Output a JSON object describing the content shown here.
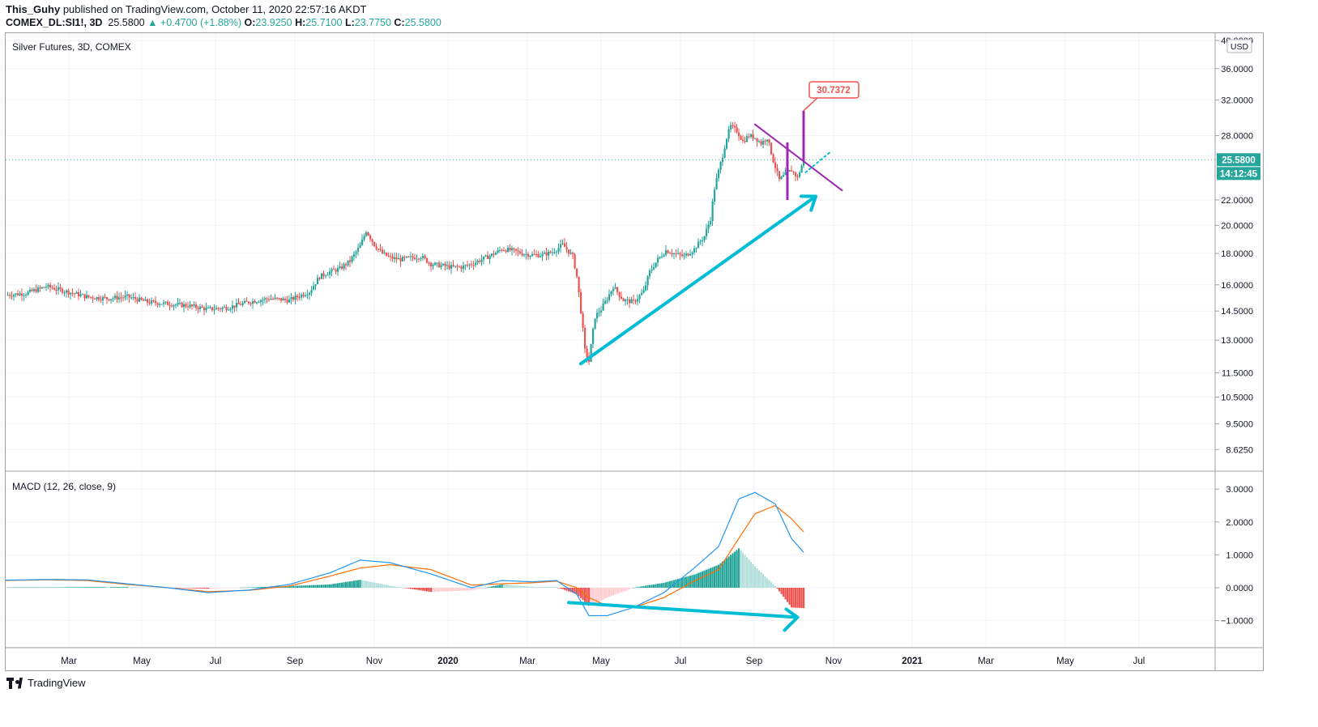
{
  "header": {
    "author": "This_Guhy",
    "published": "published on TradingView.com, October 11, 2020 22:57:16 AKDT",
    "symbol": "COMEX_DL:SI1!, 3D",
    "last": "25.5800",
    "change": "▲ +0.4700 (+1.88%)",
    "o_label": "O:",
    "o_value": "23.9250",
    "h_label": "H:",
    "h_value": "25.7100",
    "l_label": "L:",
    "l_value": "23.7750",
    "c_label": "C:",
    "c_value": "25.5800"
  },
  "footer": {
    "brand": "TradingView"
  },
  "colors": {
    "up": "#26a69a",
    "down": "#ef5350",
    "macd": "#2196f3",
    "signal": "#ff6d00",
    "arrow": "#00bcd4",
    "purple": "#9c27b0"
  },
  "chart_data": [
    {
      "type": "candlestick",
      "title": "Silver Futures, 3D, COMEX",
      "currency": "USD",
      "scale": "log",
      "ylim": [
        8.0,
        40.0
      ],
      "y_ticks": [
        40.0,
        36.0,
        32.0,
        28.0,
        22.0,
        20.0,
        18.0,
        16.0,
        14.5,
        13.0,
        11.5,
        10.5,
        9.5,
        8.625
      ],
      "y_tick_labels": [
        "40.0000",
        "36.0000",
        "32.0000",
        "28.0000",
        "22.0000",
        "20.0000",
        "18.0000",
        "16.0000",
        "14.5000",
        "13.0000",
        "11.5000",
        "10.5000",
        "9.5000",
        "8.6250"
      ],
      "x_ticks": [
        "Mar",
        "May",
        "Jul",
        "Sep",
        "Nov",
        "2020",
        "Mar",
        "May",
        "Jul",
        "Sep",
        "Nov",
        "2021",
        "Mar",
        "May",
        "Jul"
      ],
      "last_price_label": "25.5800",
      "countdown_label": "14:12:45",
      "annotation_label": "30.7372",
      "last_price": 25.58,
      "annotation_value": 30.7372,
      "price_path": [
        [
          0,
          15.4
        ],
        [
          10,
          15.5
        ],
        [
          20,
          15.9
        ],
        [
          30,
          15.6
        ],
        [
          40,
          15.3
        ],
        [
          50,
          15.2
        ],
        [
          60,
          15.3
        ],
        [
          70,
          15.0
        ],
        [
          80,
          14.9
        ],
        [
          90,
          14.8
        ],
        [
          100,
          14.6
        ],
        [
          110,
          14.7
        ],
        [
          120,
          15.0
        ],
        [
          130,
          15.2
        ],
        [
          140,
          15.1
        ],
        [
          150,
          15.6
        ],
        [
          155,
          16.5
        ],
        [
          160,
          16.8
        ],
        [
          165,
          17.0
        ],
        [
          170,
          17.5
        ],
        [
          175,
          18.5
        ],
        [
          178,
          19.6
        ],
        [
          182,
          18.6
        ],
        [
          186,
          18.0
        ],
        [
          190,
          17.7
        ],
        [
          195,
          17.6
        ],
        [
          200,
          17.7
        ],
        [
          205,
          17.8
        ],
        [
          210,
          17.3
        ],
        [
          215,
          17.2
        ],
        [
          220,
          17.1
        ],
        [
          225,
          17.1
        ],
        [
          230,
          17.3
        ],
        [
          235,
          17.6
        ],
        [
          240,
          17.9
        ],
        [
          245,
          18.3
        ],
        [
          250,
          18.2
        ],
        [
          255,
          18.0
        ],
        [
          260,
          17.9
        ],
        [
          265,
          17.9
        ],
        [
          270,
          18.1
        ],
        [
          275,
          18.6
        ],
        [
          280,
          17.8
        ],
        [
          282,
          16.5
        ],
        [
          284,
          14.5
        ],
        [
          286,
          12.5
        ],
        [
          288,
          12.0
        ],
        [
          291,
          14.2
        ],
        [
          294,
          14.6
        ],
        [
          297,
          15.2
        ],
        [
          300,
          15.9
        ],
        [
          305,
          15.1
        ],
        [
          310,
          15.0
        ],
        [
          315,
          15.6
        ],
        [
          318,
          16.8
        ],
        [
          322,
          17.6
        ],
        [
          326,
          18.2
        ],
        [
          330,
          18.0
        ],
        [
          335,
          17.8
        ],
        [
          340,
          18.3
        ],
        [
          345,
          19.2
        ],
        [
          348,
          20.5
        ],
        [
          350,
          23.0
        ],
        [
          352,
          24.5
        ],
        [
          354,
          26.0
        ],
        [
          356,
          27.8
        ],
        [
          358,
          29.0
        ],
        [
          361,
          28.5
        ],
        [
          364,
          27.4
        ],
        [
          367,
          28.0
        ],
        [
          370,
          27.8
        ],
        [
          373,
          27.2
        ],
        [
          376,
          27.8
        ],
        [
          379,
          25.5
        ],
        [
          382,
          23.7
        ],
        [
          385,
          24.2
        ],
        [
          388,
          24.6
        ],
        [
          391,
          23.9
        ],
        [
          394,
          25.58
        ]
      ],
      "trendlines": [
        {
          "from": [
            284,
            11.9
          ],
          "to": [
            400,
            22.3
          ],
          "color": "arrow",
          "arrow": true
        },
        {
          "from": [
            370,
            29.2
          ],
          "to": [
            413,
            22.8
          ],
          "color": "purple"
        },
        {
          "from": [
            395,
            24.4
          ],
          "to": [
            407,
            26.3
          ],
          "color": "arrow",
          "dotted": true
        }
      ],
      "highlight_bars": [
        {
          "x": 386,
          "low": 22.0,
          "high": 27.3
        },
        {
          "x": 394,
          "low": 25.5,
          "high": 30.74
        }
      ]
    },
    {
      "type": "macd",
      "title": "MACD (12, 26, close, 9)",
      "ylim": [
        -1.75,
        3.3
      ],
      "y_ticks": [
        3.0,
        2.0,
        1.0,
        0.0,
        -1.0
      ],
      "y_tick_labels": [
        "3.0000",
        "2.0000",
        "1.0000",
        "0.0000",
        "−1.0000"
      ],
      "macd": [
        [
          0,
          0.23
        ],
        [
          20,
          0.25
        ],
        [
          40,
          0.24
        ],
        [
          60,
          0.12
        ],
        [
          80,
          0.0
        ],
        [
          100,
          -0.15
        ],
        [
          120,
          -0.07
        ],
        [
          140,
          0.1
        ],
        [
          160,
          0.45
        ],
        [
          175,
          0.84
        ],
        [
          190,
          0.76
        ],
        [
          210,
          0.42
        ],
        [
          230,
          0.0
        ],
        [
          245,
          0.22
        ],
        [
          260,
          0.18
        ],
        [
          272,
          0.22
        ],
        [
          282,
          -0.2
        ],
        [
          288,
          -0.85
        ],
        [
          297,
          -0.85
        ],
        [
          310,
          -0.6
        ],
        [
          325,
          -0.15
        ],
        [
          340,
          0.6
        ],
        [
          352,
          1.25
        ],
        [
          362,
          2.7
        ],
        [
          370,
          2.9
        ],
        [
          380,
          2.55
        ],
        [
          388,
          1.5
        ],
        [
          394,
          1.08
        ]
      ],
      "signal": [
        [
          0,
          0.22
        ],
        [
          20,
          0.24
        ],
        [
          40,
          0.22
        ],
        [
          60,
          0.1
        ],
        [
          80,
          0.0
        ],
        [
          100,
          -0.12
        ],
        [
          120,
          -0.08
        ],
        [
          140,
          0.05
        ],
        [
          160,
          0.35
        ],
        [
          175,
          0.6
        ],
        [
          190,
          0.7
        ],
        [
          210,
          0.55
        ],
        [
          230,
          0.08
        ],
        [
          245,
          0.12
        ],
        [
          260,
          0.15
        ],
        [
          272,
          0.2
        ],
        [
          282,
          0.0
        ],
        [
          288,
          -0.3
        ],
        [
          297,
          -0.55
        ],
        [
          310,
          -0.6
        ],
        [
          325,
          -0.3
        ],
        [
          340,
          0.2
        ],
        [
          352,
          0.55
        ],
        [
          362,
          1.5
        ],
        [
          370,
          2.25
        ],
        [
          380,
          2.5
        ],
        [
          388,
          2.1
        ],
        [
          394,
          1.7
        ]
      ],
      "divergence_arrow": {
        "from": [
          278,
          -0.45
        ],
        "to": [
          391,
          -0.9
        ]
      }
    }
  ]
}
